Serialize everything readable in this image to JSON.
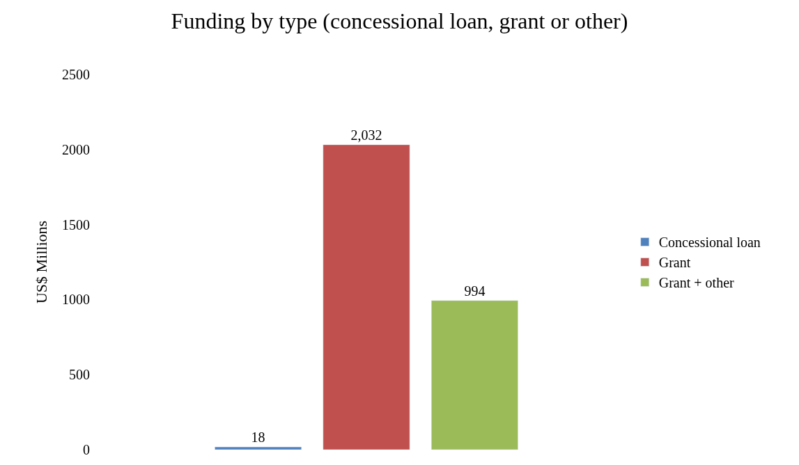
{
  "chart_data": {
    "type": "bar",
    "title": "Funding by type (concessional loan, grant or other)",
    "ylabel": "US$ Millions",
    "categories": [
      null
    ],
    "series": [
      {
        "name": "Concessional loan",
        "color": "#4f81bd",
        "values": [
          18
        ],
        "value_labels": [
          "18"
        ]
      },
      {
        "name": "Grant",
        "color": "#c0504d",
        "values": [
          2032
        ],
        "value_labels": [
          "2,032"
        ]
      },
      {
        "name": "Grant + other",
        "color": "#9bbb59",
        "values": [
          994
        ],
        "value_labels": [
          "994"
        ]
      }
    ],
    "ylim": [
      0,
      2500
    ],
    "yticks": [
      0,
      500,
      1000,
      1500,
      2000,
      2500
    ],
    "tick_labels": "y",
    "legend": "right"
  }
}
